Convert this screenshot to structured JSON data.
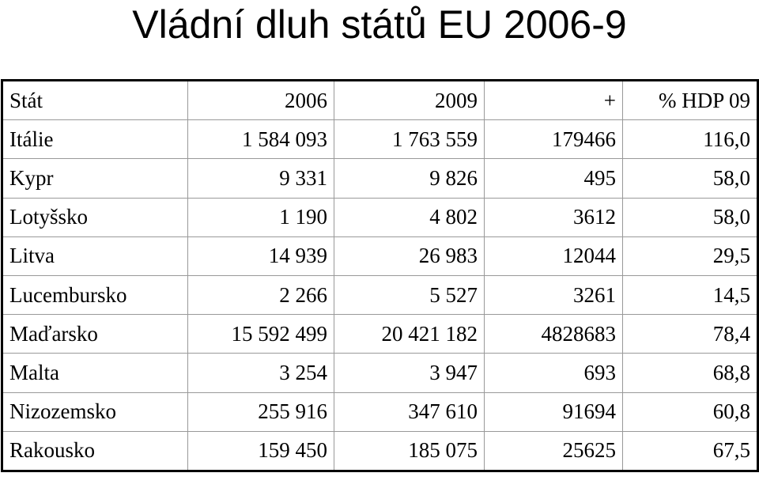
{
  "title": "Vládní dluh států EU 2006-9",
  "table": {
    "header": [
      "Stát",
      "2006",
      "2009",
      "+",
      "% HDP 09"
    ],
    "rows": [
      [
        "Itálie",
        "1 584 093",
        "1 763 559",
        "179466",
        "116,0"
      ],
      [
        "Kypr",
        "9 331",
        "9 826",
        "495",
        "58,0"
      ],
      [
        "Lotyšsko",
        "1 190",
        "4 802",
        "3612",
        "58,0"
      ],
      [
        "Litva",
        "14 939",
        "26 983",
        "12044",
        "29,5"
      ],
      [
        "Lucembursko",
        "2 266",
        "5 527",
        "3261",
        "14,5"
      ],
      [
        "Maďarsko",
        "15 592 499",
        "20 421 182",
        "4828683",
        "78,4"
      ],
      [
        "Malta",
        "3 254",
        "3 947",
        "693",
        "68,8"
      ],
      [
        "Nizozemsko",
        "255 916",
        "347 610",
        "91694",
        "60,8"
      ],
      [
        "Rakousko",
        "159 450",
        "185 075",
        "25625",
        "67,5"
      ]
    ]
  }
}
